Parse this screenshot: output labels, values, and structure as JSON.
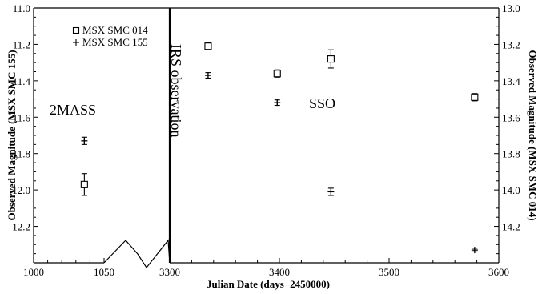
{
  "chart_data": {
    "type": "scatter",
    "title": "",
    "xlabel": "Julian Date (days+2450000)",
    "ylabel_left": "Observed Magnitude (MSX SMC 155)",
    "ylabel_right": "Observed Magnitude (MSX SMC 014)",
    "x_tick_labels": [
      "1000",
      "1050",
      "3300",
      "3400",
      "3500",
      "3600"
    ],
    "left_ylim": [
      12.4,
      11.0
    ],
    "left_yticks": [
      "11.0",
      "11.2",
      "11.4",
      "11.6",
      "11.8",
      "12.0",
      "12.2"
    ],
    "right_ylim": [
      14.4,
      13.0
    ],
    "right_yticks": [
      "13.0",
      "13.2",
      "13.4",
      "13.6",
      "13.8",
      "14.0",
      "14.2"
    ],
    "x_axis_break": true,
    "legend_position": "top-left",
    "series": [
      {
        "name": "MSX SMC 014",
        "marker": "square",
        "axis": "right",
        "points": [
          {
            "x": 1036,
            "y": 13.97,
            "err": 0.06
          },
          {
            "x": 3335,
            "y": 13.21,
            "err": 0.02
          },
          {
            "x": 3398,
            "y": 13.36,
            "err": 0.02
          },
          {
            "x": 3447,
            "y": 13.28,
            "err": 0.05
          },
          {
            "x": 3578,
            "y": 13.49,
            "err": 0.02
          }
        ]
      },
      {
        "name": "MSX SMC 155",
        "marker": "plus",
        "axis": "left",
        "points": [
          {
            "x": 1036,
            "y": 11.73,
            "err": 0.02
          },
          {
            "x": 3335,
            "y": 11.37,
            "err": 0.015
          },
          {
            "x": 3398,
            "y": 11.52,
            "err": 0.015
          },
          {
            "x": 3447,
            "y": 12.01,
            "err": 0.02
          },
          {
            "x": 3578,
            "y": 12.33,
            "err": 0.01
          }
        ]
      }
    ],
    "annotations": [
      {
        "text": "2MASS"
      },
      {
        "text": "IRS observation"
      },
      {
        "text": "SSO"
      }
    ]
  }
}
